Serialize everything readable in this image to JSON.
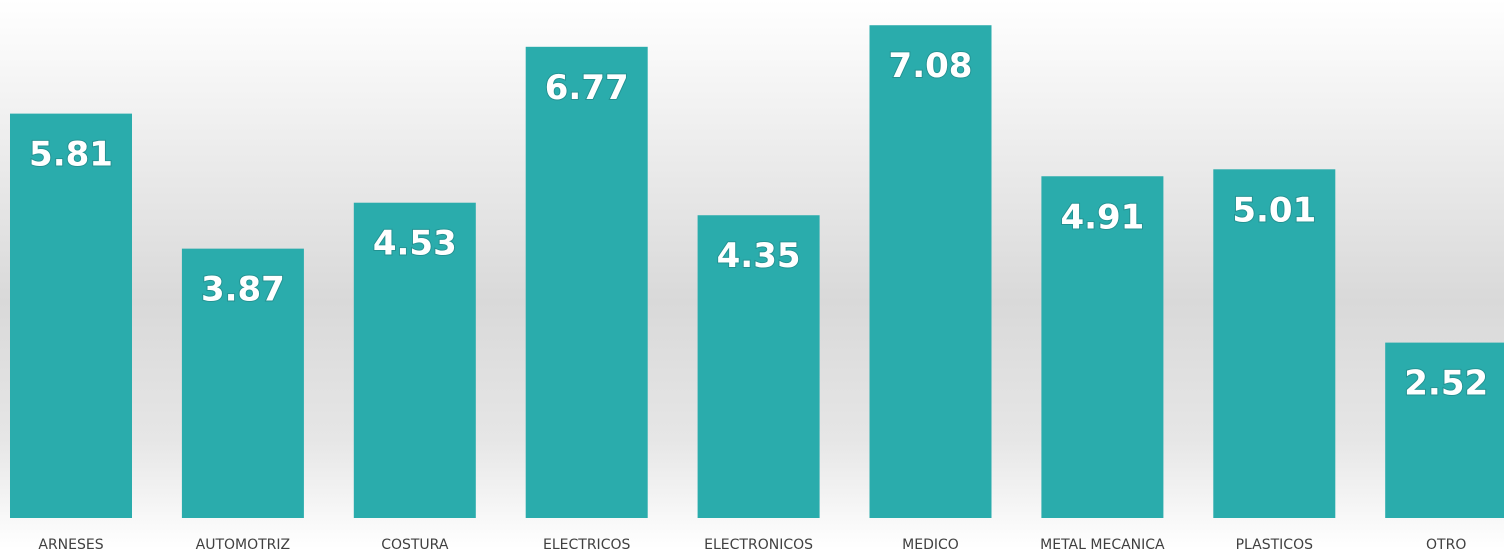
{
  "chart_data": {
    "type": "bar",
    "categories": [
      "ARNESES",
      "AUTOMOTRIZ",
      "COSTURA",
      "ELECTRICOS",
      "ELECTRONICOS",
      "MEDICO",
      "METAL MECANICA",
      "PLASTICOS",
      "OTRO"
    ],
    "values": [
      5.81,
      3.87,
      4.53,
      6.77,
      4.35,
      7.08,
      4.91,
      5.01,
      2.52
    ],
    "color": "#2aacac"
  }
}
